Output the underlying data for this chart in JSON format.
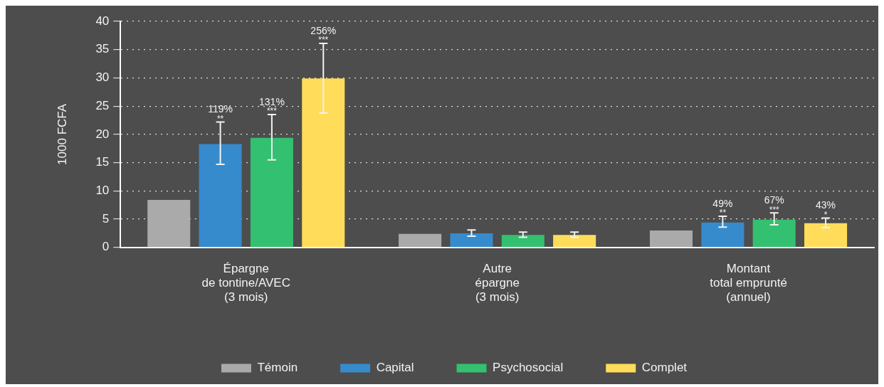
{
  "chart_data": {
    "type": "bar",
    "ylabel": "1000 FCFA",
    "categories": [
      "Épargne\nde tontine/AVEC\n(3 mois)",
      "Autre\népargne\n(3 mois)",
      "Montant\ntotal emprunté\n(annuel)"
    ],
    "series": [
      {
        "name": "Témoin",
        "color": "#aaaaaa",
        "values": [
          8.4,
          2.4,
          3.0
        ]
      },
      {
        "name": "Capital",
        "color": "#368bcc",
        "values": [
          18.3,
          2.5,
          4.4
        ],
        "errors": [
          [
            14.7,
            22.2
          ],
          [
            2.0,
            3.1
          ],
          [
            3.6,
            5.5
          ]
        ]
      },
      {
        "name": "Psychosocial",
        "color": "#33c070",
        "values": [
          19.4,
          2.2,
          4.9
        ],
        "errors": [
          [
            15.5,
            23.5
          ],
          [
            1.8,
            2.7
          ],
          [
            4.0,
            6.1
          ]
        ]
      },
      {
        "name": "Complet",
        "color": "#ffdd5a",
        "values": [
          29.9,
          2.2,
          4.3
        ],
        "errors": [
          [
            23.8,
            36.1
          ],
          [
            1.8,
            2.7
          ],
          [
            3.5,
            5.2
          ]
        ]
      }
    ],
    "annotations": [
      "119%",
      "**",
      "131%",
      "***",
      "256%",
      "***",
      "49%",
      "**",
      "67%",
      "***",
      "43%",
      "*"
    ],
    "ylim": [
      0,
      40
    ],
    "yticks": [
      0,
      5,
      10,
      15,
      20,
      25,
      30,
      35,
      40
    ],
    "grid": "y",
    "legend": "bottom"
  }
}
